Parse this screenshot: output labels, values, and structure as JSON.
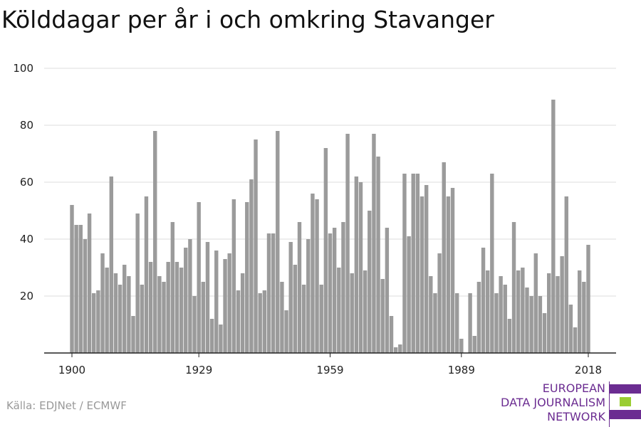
{
  "title": "Kölddagar per år i och omkring Stavanger",
  "source": "Källa: EDJNet / ECMWF",
  "logo": {
    "lines": [
      "EUROPEAN",
      "DATA JOURNALISM",
      "NETWORK"
    ],
    "colors": {
      "purple": "#6b2c91",
      "green": "#9acd32"
    }
  },
  "chart_data": {
    "type": "bar",
    "x_start": 1900,
    "x_end": 2018,
    "x_ticks": [
      1900,
      1929,
      1959,
      1989,
      2018
    ],
    "y_ticks": [
      20,
      40,
      60,
      80,
      100
    ],
    "ylim": [
      0,
      100
    ],
    "xlabel": "",
    "ylabel": "",
    "grid": true,
    "bar_color": "#9b9b9b",
    "values": [
      52,
      45,
      45,
      40,
      49,
      21,
      22,
      35,
      30,
      62,
      28,
      24,
      31,
      27,
      13,
      49,
      24,
      55,
      32,
      78,
      27,
      25,
      32,
      46,
      32,
      30,
      37,
      40,
      20,
      53,
      25,
      39,
      12,
      36,
      10,
      33,
      35,
      54,
      22,
      28,
      53,
      61,
      75,
      21,
      22,
      42,
      42,
      78,
      25,
      15,
      39,
      31,
      46,
      24,
      40,
      56,
      54,
      24,
      72,
      42,
      44,
      30,
      46,
      77,
      28,
      62,
      60,
      29,
      50,
      77,
      69,
      26,
      44,
      13,
      2,
      3,
      63,
      41,
      63,
      63,
      55,
      59,
      27,
      21,
      35,
      67,
      55,
      58,
      21,
      5,
      0,
      21,
      6,
      25,
      37,
      29,
      63,
      21,
      27,
      24,
      12,
      46,
      29,
      30,
      23,
      20,
      35,
      20,
      14,
      28,
      89,
      27,
      34,
      55,
      17,
      9,
      29,
      25,
      38
    ]
  }
}
